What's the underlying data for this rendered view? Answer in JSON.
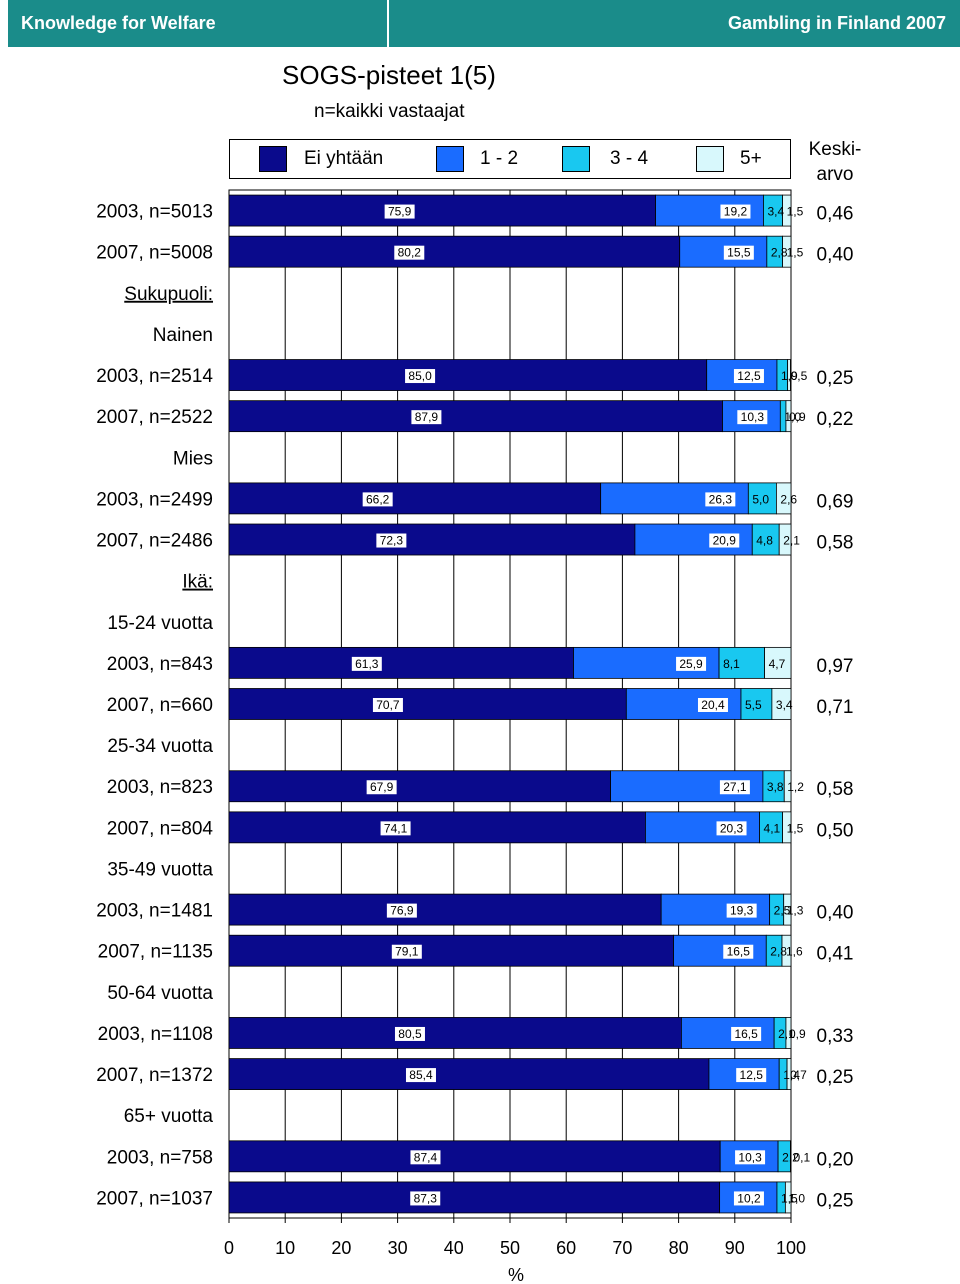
{
  "header": {
    "left": "Knowledge for Welfare",
    "right": "Gambling in Finland 2007"
  },
  "title": "SOGS-pisteet 1(5)",
  "subtitle": "n=kaikki vastaajat",
  "mean_label": "Keski-\narvo",
  "colors": {
    "ei": "#0a0a8c",
    "c12": "#1a6cff",
    "c34": "#19c8f0",
    "c5": "#d8f8fc",
    "header": "#1a8c8a"
  },
  "chart_data": {
    "type": "bar",
    "orientation": "horizontal",
    "stacked": true,
    "title": "SOGS-pisteet 1(5)",
    "subtitle": "n=kaikki vastaajat",
    "xlabel": "%",
    "xlim": [
      0,
      100
    ],
    "xticks": [
      "0",
      "10",
      "20",
      "30",
      "40",
      "50",
      "60",
      "70",
      "80",
      "90",
      "100"
    ],
    "series": [
      {
        "name": "Ei yhtään",
        "key": "ei"
      },
      {
        "name": "1 - 2",
        "key": "c12"
      },
      {
        "name": "3 - 4",
        "key": "c34"
      },
      {
        "name": "5+",
        "key": "c5"
      }
    ],
    "rows": [
      {
        "label": "2003, n=5013",
        "values": [
          75.9,
          19.2,
          3.4,
          1.5
        ],
        "labels": [
          "75,9",
          "19,2",
          "3,4",
          "1,5"
        ],
        "mean": "0,46"
      },
      {
        "label": "2007, n=5008",
        "values": [
          80.2,
          15.5,
          2.8,
          1.5
        ],
        "labels": [
          "80,2",
          "15,5",
          "2,8",
          "1,5"
        ],
        "mean": "0,40"
      },
      {
        "header": "Sukupuoli:",
        "underline": true
      },
      {
        "header": "Nainen"
      },
      {
        "label": "2003, n=2514",
        "values": [
          85.0,
          12.5,
          1.9,
          0.5
        ],
        "labels": [
          "85,0",
          "12,5",
          "1,9",
          "0,5"
        ],
        "mean": "0,25"
      },
      {
        "label": "2007, n=2522",
        "values": [
          87.9,
          10.3,
          1.0,
          0.9
        ],
        "labels": [
          "87,9",
          "10,3",
          "1,0",
          "0,9"
        ],
        "mean": "0,22"
      },
      {
        "header": "Mies"
      },
      {
        "label": "2003, n=2499",
        "values": [
          66.2,
          26.3,
          5.0,
          2.6
        ],
        "labels": [
          "66,2",
          "26,3",
          "5,0",
          "2,6"
        ],
        "mean": "0,69"
      },
      {
        "label": "2007, n=2486",
        "values": [
          72.3,
          20.9,
          4.8,
          2.1
        ],
        "labels": [
          "72,3",
          "20,9",
          "4,8",
          "2,1"
        ],
        "mean": "0,58"
      },
      {
        "header": "Ikä:",
        "underline": true
      },
      {
        "header": "15-24 vuotta"
      },
      {
        "label": "2003, n=843",
        "values": [
          61.3,
          25.9,
          8.1,
          4.7
        ],
        "labels": [
          "61,3",
          "25,9",
          "8,1",
          "4,7"
        ],
        "mean": "0,97"
      },
      {
        "label": "2007, n=660",
        "values": [
          70.7,
          20.4,
          5.5,
          3.4
        ],
        "labels": [
          "70,7",
          "20,4",
          "5,5",
          "3,4"
        ],
        "mean": "0,71"
      },
      {
        "header": "25-34 vuotta"
      },
      {
        "label": "2003, n=823",
        "values": [
          67.9,
          27.1,
          3.8,
          1.2
        ],
        "labels": [
          "67,9",
          "27,1",
          "3,8",
          "1,2"
        ],
        "mean": "0,58"
      },
      {
        "label": "2007, n=804",
        "values": [
          74.1,
          20.3,
          4.1,
          1.5
        ],
        "labels": [
          "74,1",
          "20,3",
          "4,1",
          "1,5"
        ],
        "mean": "0,50"
      },
      {
        "header": "35-49 vuotta"
      },
      {
        "label": "2003, n=1481",
        "values": [
          76.9,
          19.3,
          2.5,
          1.3
        ],
        "labels": [
          "76,9",
          "19,3",
          "2,5",
          "1,3"
        ],
        "mean": "0,40"
      },
      {
        "label": "2007, n=1135",
        "values": [
          79.1,
          16.5,
          2.8,
          1.6
        ],
        "labels": [
          "79,1",
          "16,5",
          "2,8",
          "1,6"
        ],
        "mean": "0,41"
      },
      {
        "header": "50-64 vuotta"
      },
      {
        "label": "2003, n=1108",
        "values": [
          80.5,
          16.5,
          2.1,
          0.9
        ],
        "labels": [
          "80,5",
          "16,5",
          "2,1",
          "0,9"
        ],
        "mean": "0,33"
      },
      {
        "label": "2007, n=1372",
        "values": [
          85.4,
          12.5,
          1.4,
          0.7
        ],
        "labels": [
          "85,4",
          "12,5",
          "1,4",
          "0,7"
        ],
        "mean": "0,25"
      },
      {
        "header": "65+ vuotta"
      },
      {
        "label": "2003, n=758",
        "values": [
          87.4,
          10.3,
          2.2,
          0.1
        ],
        "labels": [
          "87,4",
          "10,3",
          "2,2",
          "0,1"
        ],
        "mean": "0,20"
      },
      {
        "label": "2007, n=1037",
        "values": [
          87.3,
          10.2,
          1.5,
          1.0
        ],
        "labels": [
          "87,3",
          "10,2",
          "1,5",
          "1,0"
        ],
        "mean": "0,25"
      }
    ]
  }
}
